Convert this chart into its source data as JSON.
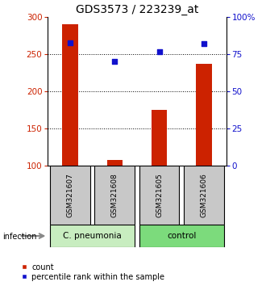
{
  "title": "GDS3573 / 223239_at",
  "samples": [
    "GSM321607",
    "GSM321608",
    "GSM321605",
    "GSM321606"
  ],
  "counts": [
    290,
    108,
    175,
    237
  ],
  "percentiles": [
    83,
    70,
    77,
    82
  ],
  "group_colors": {
    "C. pneumonia": "#c8edc0",
    "control": "#7cdb7c"
  },
  "bar_color": "#cc2200",
  "dot_color": "#1111cc",
  "bar_bottom": 100,
  "ylim_left": [
    100,
    300
  ],
  "ylim_right": [
    0,
    100
  ],
  "yticks_left": [
    100,
    150,
    200,
    250,
    300
  ],
  "yticks_right": [
    0,
    25,
    50,
    75,
    100
  ],
  "ytick_labels_right": [
    "0",
    "25",
    "50",
    "75",
    "100%"
  ],
  "grid_vals": [
    150,
    200,
    250
  ],
  "label_count": "count",
  "label_percentile": "percentile rank within the sample",
  "infection_label": "infection",
  "sample_box_color": "#c8c8c8",
  "title_fontsize": 10,
  "axis_label_color_left": "#cc2200",
  "axis_label_color_right": "#1111cc",
  "bar_width": 0.35
}
